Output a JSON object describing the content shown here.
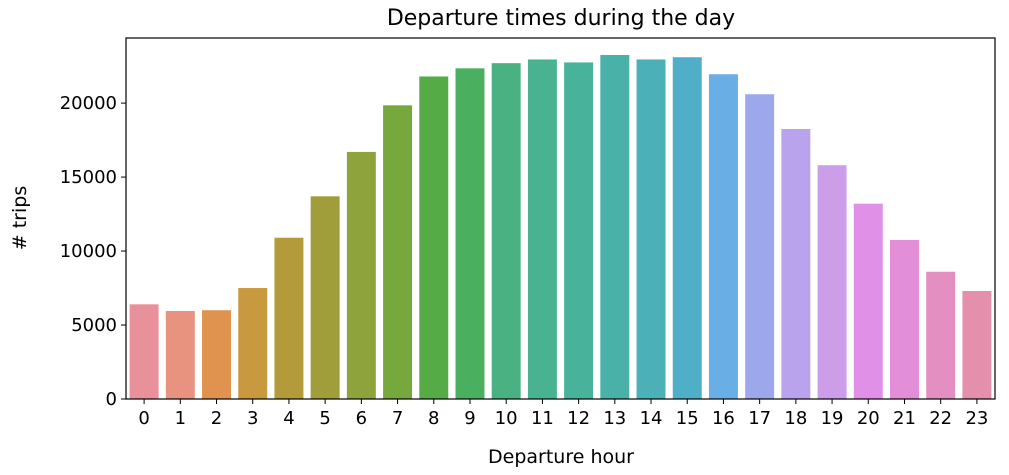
{
  "chart_data": {
    "type": "bar",
    "title": "Departure times during the day",
    "xlabel": "Departure hour",
    "ylabel": "# trips",
    "categories": [
      "0",
      "1",
      "2",
      "3",
      "4",
      "5",
      "6",
      "7",
      "8",
      "9",
      "10",
      "11",
      "12",
      "13",
      "14",
      "15",
      "16",
      "17",
      "18",
      "19",
      "20",
      "21",
      "22",
      "23"
    ],
    "values": [
      6400,
      5950,
      6000,
      7500,
      10900,
      13700,
      16700,
      19850,
      21800,
      22350,
      22700,
      22950,
      22750,
      23250,
      22950,
      23100,
      21950,
      20600,
      18250,
      15800,
      13200,
      10750,
      8600,
      7300
    ],
    "colors": [
      "#e8919a",
      "#e8937f",
      "#e0924f",
      "#c9993f",
      "#b39a3b",
      "#a09e3a",
      "#8ea33c",
      "#77a83e",
      "#55ac47",
      "#4ab060",
      "#4ab282",
      "#48b291",
      "#48b29a",
      "#49b1a7",
      "#4bb0b7",
      "#4faec8",
      "#6aaee6",
      "#9ca8eb",
      "#b8a3ec",
      "#cc9de9",
      "#e090e6",
      "#e38ed8",
      "#e48fc1",
      "#e48fab"
    ],
    "yticks": [
      0,
      5000,
      10000,
      15000,
      20000
    ],
    "ylim": [
      0,
      24400
    ],
    "grid": false,
    "legend": "none"
  }
}
